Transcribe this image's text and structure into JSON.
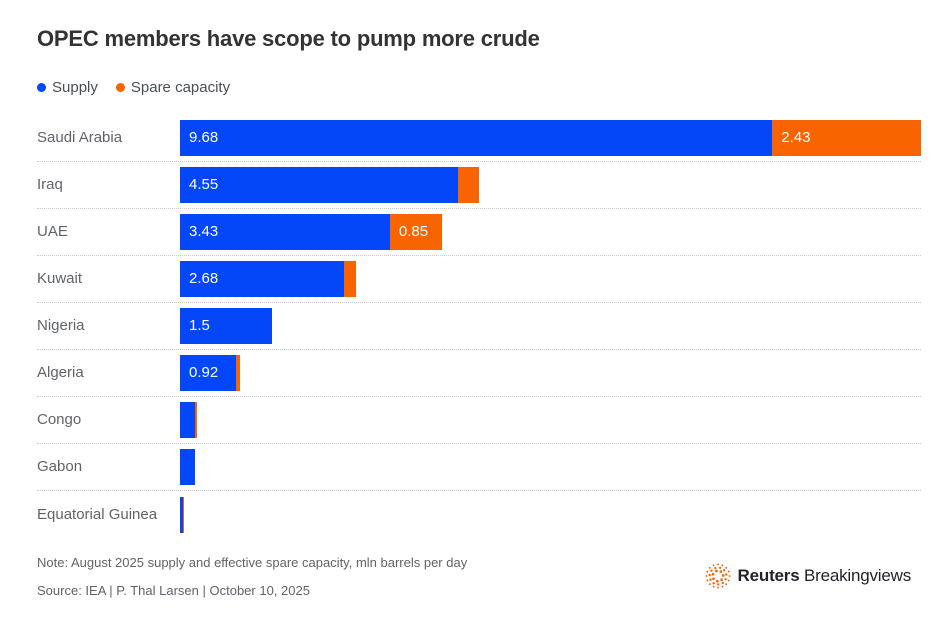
{
  "title": "OPEC members have scope to pump more crude",
  "legend": [
    {
      "label": "Supply",
      "color": "#0347f8"
    },
    {
      "label": "Spare capacity",
      "color": "#f76400"
    }
  ],
  "chart_data": {
    "type": "bar",
    "orientation": "horizontal",
    "stacked": true,
    "title": "OPEC members have scope to pump more crude",
    "unit": "mln barrels per day",
    "categories": [
      "Saudi Arabia",
      "Iraq",
      "UAE",
      "Kuwait",
      "Nigeria",
      "Algeria",
      "Congo",
      "Gabon",
      "Equatorial Guinea"
    ],
    "series": [
      {
        "name": "Supply",
        "color": "#0347f8",
        "values": [
          9.68,
          4.55,
          3.43,
          2.68,
          1.5,
          0.92,
          0.25,
          0.24,
          0.05
        ],
        "labels": [
          "9.68",
          "4.55",
          "3.43",
          "2.68",
          "1.5",
          "0.92",
          "",
          "",
          ""
        ]
      },
      {
        "name": "Spare capacity",
        "color": "#f76400",
        "values": [
          2.43,
          0.33,
          0.85,
          0.2,
          0,
          0.06,
          0.02,
          0,
          0.02
        ],
        "labels": [
          "2.43",
          "",
          "0.85",
          "",
          "",
          "",
          "",
          "",
          ""
        ]
      }
    ],
    "xlim": [
      0,
      12.11
    ],
    "grid": false,
    "legend_position": "top",
    "row_separator": "dotted"
  },
  "footer": {
    "note": "Note: August 2025 supply and effective spare capacity, mln barrels per day",
    "source": "Source: IEA | P. Thal Larsen | October 10, 2025",
    "logo": {
      "brand": "Reuters",
      "suffix": "Breakingviews",
      "dot_color": "#f76400"
    }
  },
  "colors": {
    "title": "#333333",
    "category_label": "#5f646a",
    "bar_value_text": "#ffffff",
    "separator": "#c9c9c9",
    "background": "#ffffff"
  }
}
